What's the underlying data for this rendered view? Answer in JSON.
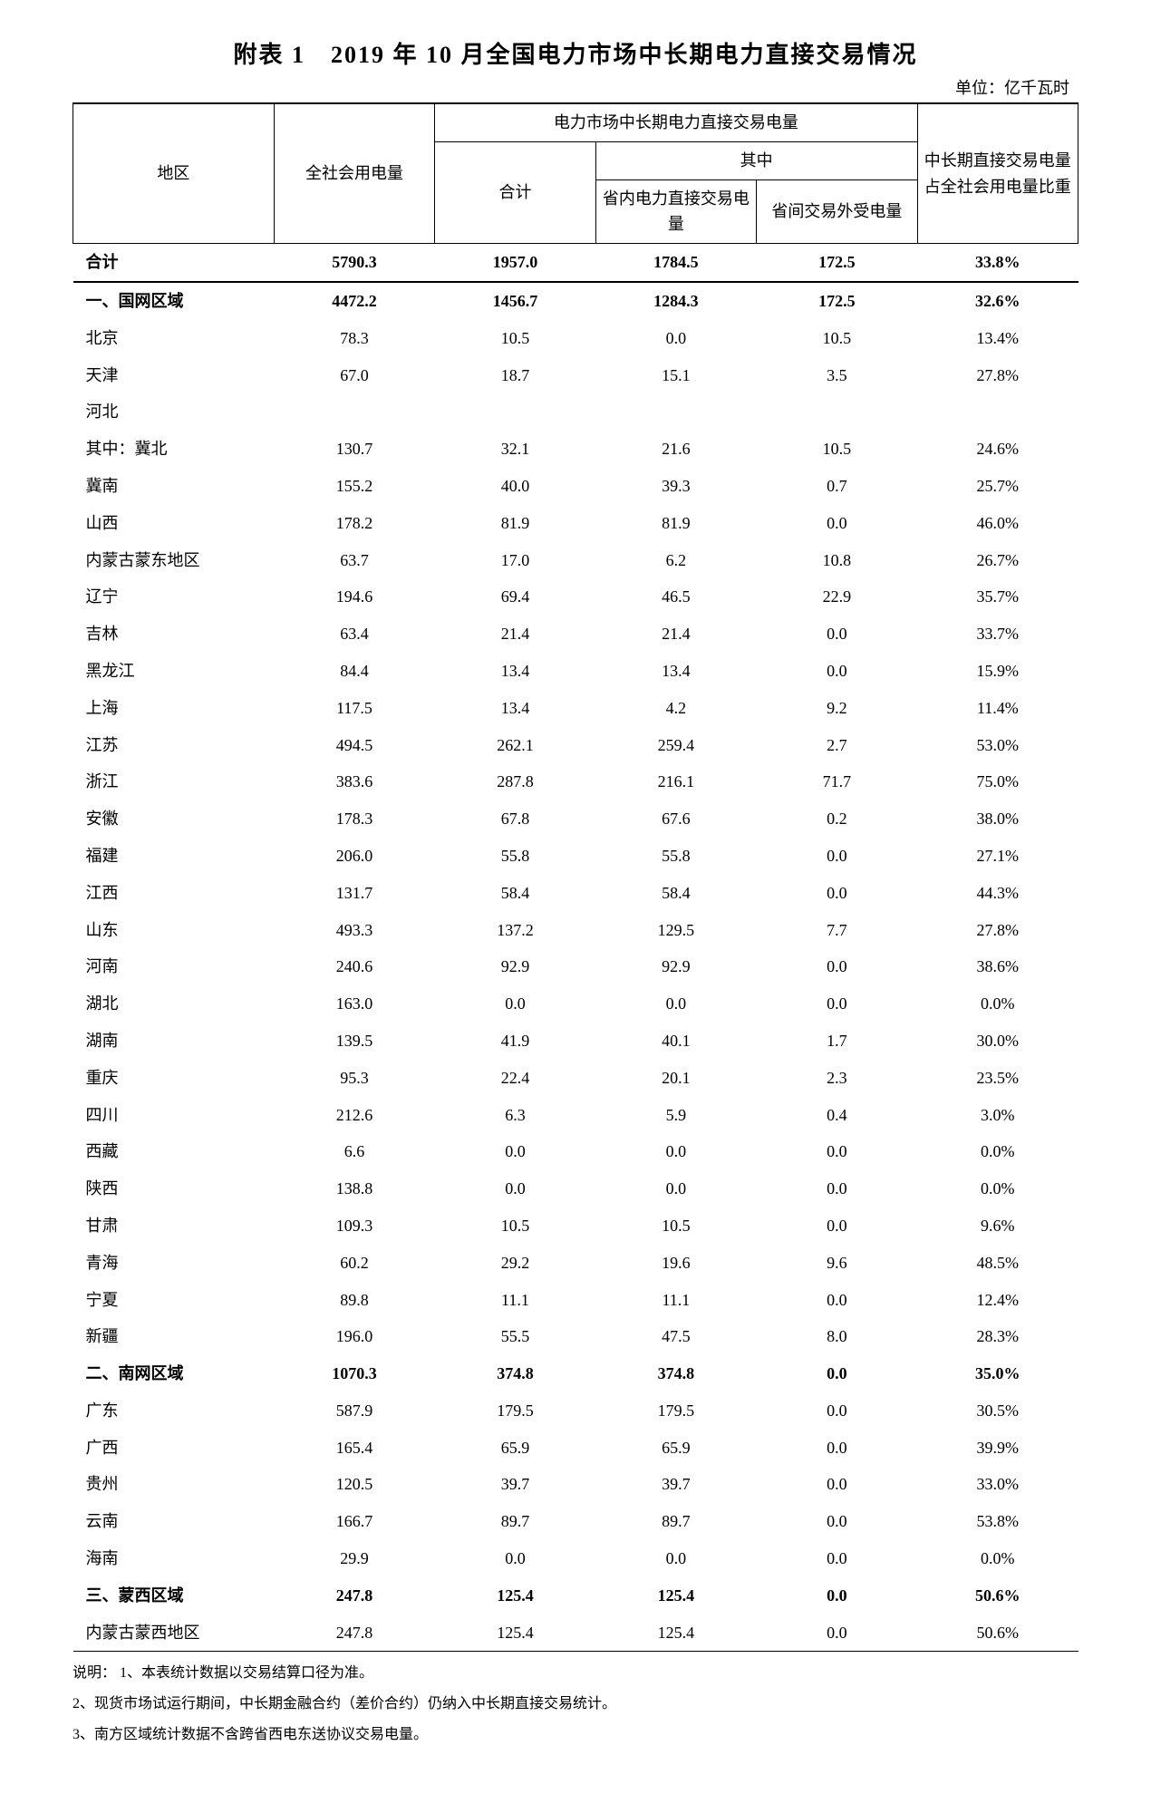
{
  "title": "附表 1　2019 年 10 月全国电力市场中长期电力直接交易情况",
  "unit": "单位：亿千瓦时",
  "headers": {
    "region": "地区",
    "total_consumption": "全社会用电量",
    "direct_trade_group": "电力市场中长期电力直接交易电量",
    "subtotal": "合计",
    "of_which": "其中",
    "intra_province": "省内电力直接交易电量",
    "inter_province": "省间交易外受电量",
    "ratio": "中长期直接交易电量占全社会用电量比重"
  },
  "rows": [
    {
      "type": "total",
      "region": "合计",
      "c1": "5790.3",
      "c2": "1957.0",
      "c3": "1784.5",
      "c4": "172.5",
      "c5": "33.8%"
    },
    {
      "type": "section",
      "region": "一、国网区域",
      "c1": "4472.2",
      "c2": "1456.7",
      "c3": "1284.3",
      "c4": "172.5",
      "c5": "32.6%"
    },
    {
      "type": "data",
      "region": "北京",
      "c1": "78.3",
      "c2": "10.5",
      "c3": "0.0",
      "c4": "10.5",
      "c5": "13.4%"
    },
    {
      "type": "data",
      "region": "天津",
      "c1": "67.0",
      "c2": "18.7",
      "c3": "15.1",
      "c4": "3.5",
      "c5": "27.8%"
    },
    {
      "type": "data",
      "region": "河北",
      "c1": "",
      "c2": "",
      "c3": "",
      "c4": "",
      "c5": ""
    },
    {
      "type": "data",
      "region": "其中：冀北",
      "c1": "130.7",
      "c2": "32.1",
      "c3": "21.6",
      "c4": "10.5",
      "c5": "24.6%"
    },
    {
      "type": "data",
      "region": "冀南",
      "c1": "155.2",
      "c2": "40.0",
      "c3": "39.3",
      "c4": "0.7",
      "c5": "25.7%"
    },
    {
      "type": "data",
      "region": "山西",
      "c1": "178.2",
      "c2": "81.9",
      "c3": "81.9",
      "c4": "0.0",
      "c5": "46.0%"
    },
    {
      "type": "data",
      "region": "内蒙古蒙东地区",
      "c1": "63.7",
      "c2": "17.0",
      "c3": "6.2",
      "c4": "10.8",
      "c5": "26.7%"
    },
    {
      "type": "data",
      "region": "辽宁",
      "c1": "194.6",
      "c2": "69.4",
      "c3": "46.5",
      "c4": "22.9",
      "c5": "35.7%"
    },
    {
      "type": "data",
      "region": "吉林",
      "c1": "63.4",
      "c2": "21.4",
      "c3": "21.4",
      "c4": "0.0",
      "c5": "33.7%"
    },
    {
      "type": "data",
      "region": "黑龙江",
      "c1": "84.4",
      "c2": "13.4",
      "c3": "13.4",
      "c4": "0.0",
      "c5": "15.9%"
    },
    {
      "type": "data",
      "region": "上海",
      "c1": "117.5",
      "c2": "13.4",
      "c3": "4.2",
      "c4": "9.2",
      "c5": "11.4%"
    },
    {
      "type": "data",
      "region": "江苏",
      "c1": "494.5",
      "c2": "262.1",
      "c3": "259.4",
      "c4": "2.7",
      "c5": "53.0%"
    },
    {
      "type": "data",
      "region": "浙江",
      "c1": "383.6",
      "c2": "287.8",
      "c3": "216.1",
      "c4": "71.7",
      "c5": "75.0%"
    },
    {
      "type": "data",
      "region": "安徽",
      "c1": "178.3",
      "c2": "67.8",
      "c3": "67.6",
      "c4": "0.2",
      "c5": "38.0%"
    },
    {
      "type": "data",
      "region": "福建",
      "c1": "206.0",
      "c2": "55.8",
      "c3": "55.8",
      "c4": "0.0",
      "c5": "27.1%"
    },
    {
      "type": "data",
      "region": "江西",
      "c1": "131.7",
      "c2": "58.4",
      "c3": "58.4",
      "c4": "0.0",
      "c5": "44.3%"
    },
    {
      "type": "data",
      "region": "山东",
      "c1": "493.3",
      "c2": "137.2",
      "c3": "129.5",
      "c4": "7.7",
      "c5": "27.8%"
    },
    {
      "type": "data",
      "region": "河南",
      "c1": "240.6",
      "c2": "92.9",
      "c3": "92.9",
      "c4": "0.0",
      "c5": "38.6%"
    },
    {
      "type": "data",
      "region": "湖北",
      "c1": "163.0",
      "c2": "0.0",
      "c3": "0.0",
      "c4": "0.0",
      "c5": "0.0%"
    },
    {
      "type": "data",
      "region": "湖南",
      "c1": "139.5",
      "c2": "41.9",
      "c3": "40.1",
      "c4": "1.7",
      "c5": "30.0%"
    },
    {
      "type": "data",
      "region": "重庆",
      "c1": "95.3",
      "c2": "22.4",
      "c3": "20.1",
      "c4": "2.3",
      "c5": "23.5%"
    },
    {
      "type": "data",
      "region": "四川",
      "c1": "212.6",
      "c2": "6.3",
      "c3": "5.9",
      "c4": "0.4",
      "c5": "3.0%"
    },
    {
      "type": "data",
      "region": "西藏",
      "c1": "6.6",
      "c2": "0.0",
      "c3": "0.0",
      "c4": "0.0",
      "c5": "0.0%"
    },
    {
      "type": "data",
      "region": "陕西",
      "c1": "138.8",
      "c2": "0.0",
      "c3": "0.0",
      "c4": "0.0",
      "c5": "0.0%"
    },
    {
      "type": "data",
      "region": "甘肃",
      "c1": "109.3",
      "c2": "10.5",
      "c3": "10.5",
      "c4": "0.0",
      "c5": "9.6%"
    },
    {
      "type": "data",
      "region": "青海",
      "c1": "60.2",
      "c2": "29.2",
      "c3": "19.6",
      "c4": "9.6",
      "c5": "48.5%"
    },
    {
      "type": "data",
      "region": "宁夏",
      "c1": "89.8",
      "c2": "11.1",
      "c3": "11.1",
      "c4": "0.0",
      "c5": "12.4%"
    },
    {
      "type": "data",
      "region": "新疆",
      "c1": "196.0",
      "c2": "55.5",
      "c3": "47.5",
      "c4": "8.0",
      "c5": "28.3%"
    },
    {
      "type": "section",
      "region": "二、南网区域",
      "c1": "1070.3",
      "c2": "374.8",
      "c3": "374.8",
      "c4": "0.0",
      "c5": "35.0%"
    },
    {
      "type": "data",
      "region": "广东",
      "c1": "587.9",
      "c2": "179.5",
      "c3": "179.5",
      "c4": "0.0",
      "c5": "30.5%"
    },
    {
      "type": "data",
      "region": "广西",
      "c1": "165.4",
      "c2": "65.9",
      "c3": "65.9",
      "c4": "0.0",
      "c5": "39.9%"
    },
    {
      "type": "data",
      "region": "贵州",
      "c1": "120.5",
      "c2": "39.7",
      "c3": "39.7",
      "c4": "0.0",
      "c5": "33.0%"
    },
    {
      "type": "data",
      "region": "云南",
      "c1": "166.7",
      "c2": "89.7",
      "c3": "89.7",
      "c4": "0.0",
      "c5": "53.8%"
    },
    {
      "type": "data",
      "region": "海南",
      "c1": "29.9",
      "c2": "0.0",
      "c3": "0.0",
      "c4": "0.0",
      "c5": "0.0%"
    },
    {
      "type": "section",
      "region": "三、蒙西区域",
      "c1": "247.8",
      "c2": "125.4",
      "c3": "125.4",
      "c4": "0.0",
      "c5": "50.6%"
    },
    {
      "type": "data",
      "region": "内蒙古蒙西地区",
      "c1": "247.8",
      "c2": "125.4",
      "c3": "125.4",
      "c4": "0.0",
      "c5": "50.6%",
      "last": true
    }
  ],
  "notes": [
    "说明： 1、本表统计数据以交易结算口径为准。",
    "2、现货市场试运行期间，中长期金融合约（差价合约）仍纳入中长期直接交易统计。",
    "3、南方区域统计数据不含跨省西电东送协议交易电量。"
  ]
}
